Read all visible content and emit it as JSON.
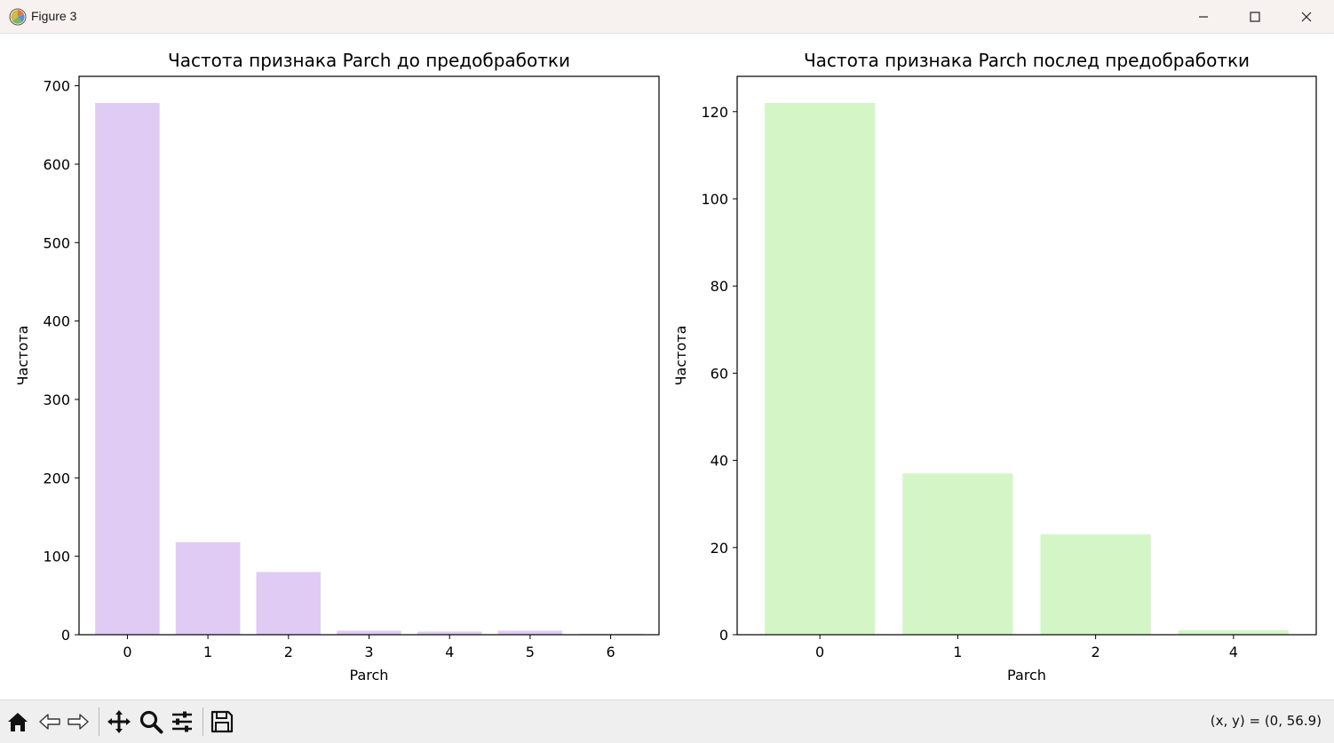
{
  "window": {
    "title": "Figure 3",
    "minimize_icon": "minimize-icon",
    "maximize_icon": "maximize-icon",
    "close_icon": "close-icon"
  },
  "colors": {
    "left_bar": "#e0cbf4",
    "right_bar": "#d4f6c6",
    "axis": "#000000"
  },
  "chart_data": [
    {
      "type": "bar",
      "title": "Частота признака Parch до предобработки",
      "xlabel": "Parch",
      "ylabel": "Частота",
      "categories": [
        "0",
        "1",
        "2",
        "3",
        "4",
        "5",
        "6"
      ],
      "values": [
        678,
        118,
        80,
        5,
        4,
        5,
        1
      ],
      "ylim": [
        0,
        712
      ],
      "yticks": [
        0,
        100,
        200,
        300,
        400,
        500,
        600,
        700
      ],
      "grid": false,
      "color": "#e0cbf4"
    },
    {
      "type": "bar",
      "title": "Частота признака Parch послед предобработки",
      "xlabel": "Parch",
      "ylabel": "Частота",
      "categories": [
        "0",
        "1",
        "2",
        "4"
      ],
      "values": [
        122,
        37,
        23,
        1
      ],
      "ylim": [
        0,
        128.1
      ],
      "yticks": [
        0,
        20,
        40,
        60,
        80,
        100,
        120
      ],
      "grid": false,
      "color": "#d4f6c6"
    }
  ],
  "toolbar": {
    "buttons": [
      {
        "name": "home-icon"
      },
      {
        "name": "back-icon"
      },
      {
        "name": "forward-icon"
      },
      {
        "name": "pan-icon"
      },
      {
        "name": "zoom-icon"
      },
      {
        "name": "configure-subplots-icon"
      },
      {
        "name": "save-icon"
      }
    ],
    "coords_text": "(x, y) = (0, 56.9)"
  }
}
